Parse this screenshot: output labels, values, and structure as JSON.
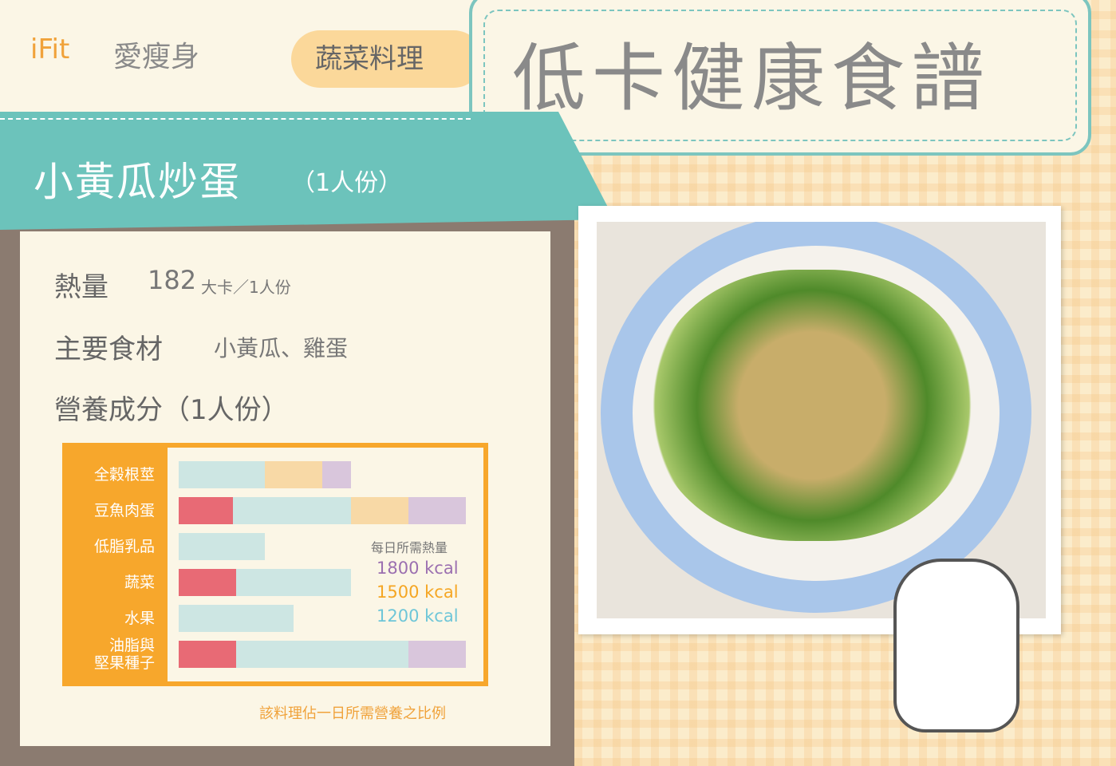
{
  "header": {
    "logo_brand": "iFit",
    "logo_text": "愛瘦身",
    "category": "蔬菜料理",
    "title": "低卡健康食譜"
  },
  "recipe": {
    "name": "小黃瓜炒蛋",
    "serving": "（1人份）",
    "calories_label": "熱量",
    "calories_value": "182",
    "calories_unit": "大卡／1人份",
    "ingredients_label": "主要食材",
    "ingredients": "小黃瓜、雞蛋",
    "nutrition_label": "營養成分（1人份）"
  },
  "chart_data": {
    "type": "bar",
    "orientation": "horizontal",
    "stacked": true,
    "categories": [
      "全穀根莖",
      "豆魚肉蛋",
      "低脂乳品",
      "蔬菜",
      "水果",
      "油脂與\n堅果種子"
    ],
    "legend_title": "每日所需熱量",
    "series": [
      {
        "name": "1200 kcal",
        "color": "#cde6e3",
        "values": [
          1.5,
          3,
          1.5,
          3,
          2,
          4
        ]
      },
      {
        "name": "1500 kcal",
        "color": "#f8d9a6",
        "values": [
          1,
          1,
          0,
          0,
          0,
          0
        ]
      },
      {
        "name": "1800 kcal",
        "color": "#d9c6dc",
        "values": [
          0.5,
          1,
          0,
          0,
          0,
          1
        ]
      }
    ],
    "legend_colors": [
      "#9b6fb0",
      "#f5a623",
      "#6ec6d8"
    ],
    "portion": {
      "color": "#e86a75",
      "values": [
        0,
        0.95,
        0,
        1,
        0,
        1
      ]
    },
    "xlim": [
      0,
      5
    ],
    "note": "該料理佔一日所需營養之比例"
  }
}
